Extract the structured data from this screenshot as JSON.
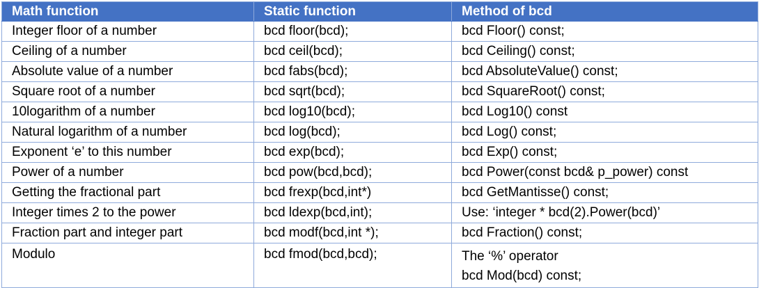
{
  "table": {
    "headers": [
      "Math function",
      "Static function",
      "Method of bcd"
    ],
    "rows": [
      [
        "Integer floor of a number",
        "bcd floor(bcd);",
        "bcd Floor() const;"
      ],
      [
        "Ceiling of a number",
        "bcd ceil(bcd);",
        "bcd Ceiling() const;"
      ],
      [
        "Absolute value of a number",
        "bcd fabs(bcd);",
        "bcd AbsoluteValue() const;"
      ],
      [
        "Square root of a number",
        "bcd sqrt(bcd);",
        "bcd SquareRoot() const;"
      ],
      [
        "10logarithm of a number",
        "bcd log10(bcd);",
        "bcd Log10() const"
      ],
      [
        "Natural logarithm of a number",
        "bcd log(bcd);",
        "bcd Log() const;"
      ],
      [
        "Exponent ‘e’ to this number",
        "bcd exp(bcd);",
        "bcd Exp() const;"
      ],
      [
        "Power of a number",
        "bcd pow(bcd,bcd);",
        "bcd Power(const bcd& p_power) const"
      ],
      [
        "Getting the fractional part",
        "bcd frexp(bcd,int*)",
        "bcd GetMantisse() const;"
      ],
      [
        "Integer times 2 to the power",
        "bcd ldexp(bcd,int);",
        "Use: ‘integer * bcd(2).Power(bcd)’"
      ],
      [
        "Fraction part and integer part",
        "bcd modf(bcd,int *);",
        "bcd Fraction() const;"
      ]
    ],
    "last_row": {
      "math": "Modulo",
      "static": "bcd fmod(bcd,bcd);",
      "method_line1": "The ‘%’ operator",
      "method_line2": "bcd Mod(bcd) const;"
    }
  },
  "colors": {
    "header_bg": "#4472c4",
    "header_text": "#ffffff",
    "border": "#8eaadb"
  }
}
